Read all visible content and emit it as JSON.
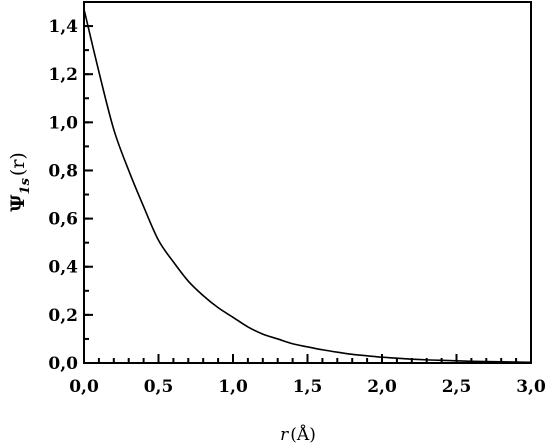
{
  "chart_data": {
    "type": "line",
    "title": "",
    "xlabel": {
      "var": "r",
      "unit": "(Å)"
    },
    "ylabel": {
      "symbol": "Ψ",
      "sub": "1s",
      "arg": "(r)"
    },
    "xlim": [
      0,
      3.0
    ],
    "ylim": [
      0,
      1.5
    ],
    "x_ticks": [
      0,
      0.5,
      1.0,
      1.5,
      2.0,
      2.5,
      3.0
    ],
    "x_tick_labels": [
      "0,0",
      "0,5",
      "1,0",
      "1,5",
      "2,0",
      "2,5",
      "3,0"
    ],
    "x_minor_step": 0.1,
    "y_ticks": [
      0,
      0.2,
      0.4,
      0.6,
      0.8,
      1.0,
      1.2,
      1.4
    ],
    "y_tick_labels": [
      "0,0",
      "0,2",
      "0,4",
      "0,6",
      "0,8",
      "1,0",
      "1,2",
      "1,4"
    ],
    "y_minor_step": 0.1,
    "grid": false,
    "series": [
      {
        "x": [
          0.0,
          0.1,
          0.2,
          0.3,
          0.4,
          0.5,
          0.6,
          0.7,
          0.8,
          0.9,
          1.0,
          1.1,
          1.2,
          1.3,
          1.4,
          1.5,
          1.6,
          1.7,
          1.8,
          1.9,
          2.0,
          2.1,
          2.2,
          2.3,
          2.4,
          2.5,
          2.6,
          2.7,
          2.8,
          2.9,
          3.0
        ],
        "y": [
          1.47,
          1.21,
          0.97,
          0.8,
          0.65,
          0.51,
          0.42,
          0.34,
          0.28,
          0.23,
          0.19,
          0.15,
          0.12,
          0.1,
          0.08,
          0.067,
          0.055,
          0.045,
          0.036,
          0.03,
          0.024,
          0.02,
          0.016,
          0.013,
          0.011,
          0.009,
          0.007,
          0.006,
          0.005,
          0.004,
          0.003
        ]
      }
    ]
  }
}
